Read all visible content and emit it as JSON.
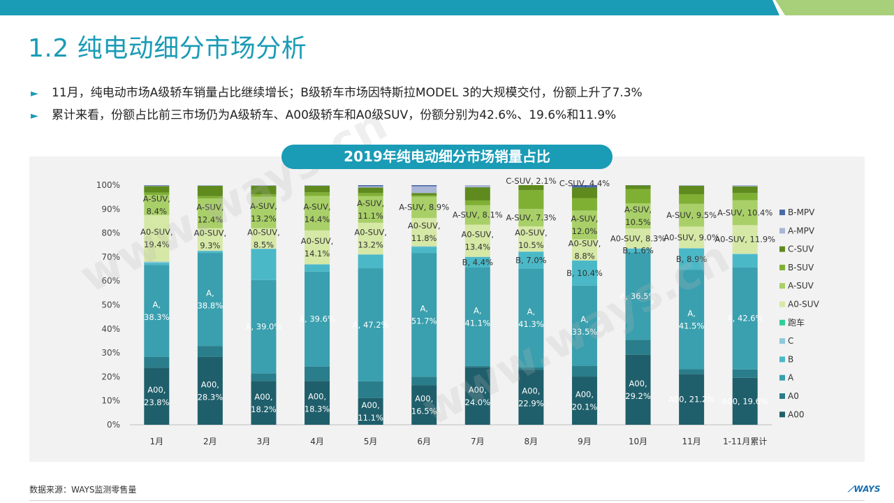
{
  "page": {
    "title": "1.2 纯电动细分市场分析",
    "bullets": [
      "11月，纯电动市场A级轿车销量占比继续增长；B级轿车市场因特斯拉MODEL 3的大规模交付，份额上升了7.3%",
      "累计来看，份额占比前三市场仍为A级轿车、A00级轿车和A0级SUV，份额分别为42.6%、19.6%和11.9%"
    ],
    "bullet_marker": "►",
    "source": "数据来源：WAYS监测零售量",
    "logo": "WAYS",
    "watermark": "www.ways.cn",
    "colors": {
      "accent": "#1a9bb6",
      "topbar_green": "#a8cf7a"
    }
  },
  "chart_data": {
    "type": "bar",
    "stacked": true,
    "title": "2019年纯电动细分市场销量占比",
    "categories": [
      "1月",
      "2月",
      "3月",
      "4月",
      "5月",
      "6月",
      "7月",
      "8月",
      "9月",
      "10月",
      "11月",
      "1-11月累计"
    ],
    "ylim": [
      0,
      100
    ],
    "y_ticks": [
      "0%",
      "10%",
      "20%",
      "30%",
      "40%",
      "50%",
      "60%",
      "70%",
      "80%",
      "90%",
      "100%"
    ],
    "legend_position": "right",
    "series": [
      {
        "name": "A00",
        "color": "#1f5f6b",
        "values": [
          23.8,
          28.3,
          18.2,
          18.3,
          11.1,
          16.5,
          24.0,
          22.9,
          20.1,
          29.2,
          21.2,
          19.6
        ]
      },
      {
        "name": "A0",
        "color": "#2a7d8a",
        "values": [
          4.5,
          4.6,
          3.2,
          6.0,
          7.0,
          3.5,
          0.5,
          1.0,
          4.5,
          6.2,
          2.0,
          3.5
        ]
      },
      {
        "name": "A",
        "color": "#3a9fae",
        "values": [
          38.3,
          38.8,
          39.0,
          39.6,
          47.2,
          51.7,
          41.1,
          41.3,
          33.5,
          36.5,
          41.5,
          42.6
        ]
      },
      {
        "name": "B",
        "color": "#4bb8c7",
        "values": [
          1.0,
          0.8,
          13.0,
          3.0,
          5.7,
          2.5,
          4.4,
          7.0,
          10.4,
          1.6,
          8.9,
          5.5
        ]
      },
      {
        "name": "C",
        "color": "#8fc9dc",
        "values": [
          0.5,
          0.2,
          0.1,
          0.1,
          0.1,
          0.3,
          0.1,
          0.1,
          0.1,
          0.1,
          0.1,
          0.2
        ]
      },
      {
        "name": "跑车",
        "color": "#2ecf98",
        "values": [
          0,
          0,
          0,
          0,
          0,
          0,
          0,
          0,
          0,
          0,
          0,
          0
        ]
      },
      {
        "name": "A0-SUV",
        "color": "#d6e8a6",
        "values": [
          19.4,
          9.3,
          8.5,
          14.1,
          13.2,
          11.8,
          13.4,
          10.5,
          8.8,
          8.3,
          9.0,
          11.9
        ]
      },
      {
        "name": "A-SUV",
        "color": "#a9d068",
        "values": [
          8.4,
          12.4,
          13.2,
          14.4,
          11.1,
          8.9,
          8.1,
          7.3,
          12.0,
          10.5,
          9.5,
          10.4
        ]
      },
      {
        "name": "B-SUV",
        "color": "#7fb034",
        "values": [
          1.0,
          1.0,
          1.0,
          1.5,
          1.3,
          0.5,
          2.0,
          7.8,
          5.2,
          6.0,
          4.0,
          3.0
        ]
      },
      {
        "name": "C-SUV",
        "color": "#5e8a1e",
        "values": [
          2.7,
          4.3,
          3.5,
          2.7,
          2.3,
          1.0,
          5.5,
          2.1,
          4.4,
          1.5,
          3.5,
          2.8
        ]
      },
      {
        "name": "A-MPV",
        "color": "#aab6d6",
        "values": [
          0.2,
          0.3,
          0.3,
          0.3,
          0.5,
          2.8,
          0.9,
          0,
          0,
          0,
          0.3,
          0.5
        ]
      },
      {
        "name": "B-MPV",
        "color": "#4a6aa8",
        "values": [
          0.2,
          0,
          0,
          0,
          0.5,
          0.5,
          0,
          0,
          1.0,
          0.1,
          0,
          0
        ]
      }
    ],
    "data_labels": [
      {
        "cat": 0,
        "series": "A00",
        "lines": [
          "A00,",
          "23.8%"
        ]
      },
      {
        "cat": 0,
        "series": "A",
        "lines": [
          "A,",
          "38.3%"
        ]
      },
      {
        "cat": 0,
        "series": "A0-SUV",
        "lines": [
          "A0-SUV,",
          "19.4%"
        ]
      },
      {
        "cat": 0,
        "series": "A-SUV",
        "lines": [
          "A-SUV,",
          "8.4%"
        ]
      },
      {
        "cat": 1,
        "series": "A00",
        "lines": [
          "A00,",
          "28.3%"
        ]
      },
      {
        "cat": 1,
        "series": "A",
        "lines": [
          "A,",
          "38.8%"
        ]
      },
      {
        "cat": 1,
        "series": "A0-SUV",
        "lines": [
          "A0-SUV,",
          "9.3%"
        ]
      },
      {
        "cat": 1,
        "series": "A-SUV",
        "lines": [
          "A-SUV,",
          "12.4%"
        ]
      },
      {
        "cat": 2,
        "series": "A00",
        "lines": [
          "A00,",
          "18.2%"
        ]
      },
      {
        "cat": 2,
        "series": "A",
        "lines": [
          "A, 39.0%"
        ]
      },
      {
        "cat": 2,
        "series": "A0-SUV",
        "lines": [
          "A0-SUV,",
          "8.5%"
        ]
      },
      {
        "cat": 2,
        "series": "A-SUV",
        "lines": [
          "A-SUV,",
          "13.2%"
        ]
      },
      {
        "cat": 3,
        "series": "A00",
        "lines": [
          "A00,",
          "18.3%"
        ]
      },
      {
        "cat": 3,
        "series": "A",
        "lines": [
          "A, 39.6%"
        ]
      },
      {
        "cat": 3,
        "series": "A0-SUV",
        "lines": [
          "A0-SUV,",
          "14.1%"
        ]
      },
      {
        "cat": 3,
        "series": "A-SUV",
        "lines": [
          "A-SUV,",
          "14.4%"
        ]
      },
      {
        "cat": 4,
        "series": "A00",
        "lines": [
          "A00,",
          "11.1%"
        ]
      },
      {
        "cat": 4,
        "series": "A",
        "lines": [
          "A, 47.2%"
        ]
      },
      {
        "cat": 4,
        "series": "A0-SUV",
        "lines": [
          "A0-SUV,",
          "13.2%"
        ]
      },
      {
        "cat": 4,
        "series": "A-SUV",
        "lines": [
          "A-SUV,",
          "11.1%"
        ]
      },
      {
        "cat": 5,
        "series": "A00",
        "lines": [
          "A00,",
          "16.5%"
        ]
      },
      {
        "cat": 5,
        "series": "A",
        "lines": [
          "A,",
          "51.7%"
        ]
      },
      {
        "cat": 5,
        "series": "A0-SUV",
        "lines": [
          "A0-SUV,",
          "11.8%"
        ]
      },
      {
        "cat": 5,
        "series": "A-SUV",
        "lines": [
          "A-SUV, 8.9%"
        ]
      },
      {
        "cat": 6,
        "series": "A00",
        "lines": [
          "A00,",
          "24.0%"
        ]
      },
      {
        "cat": 6,
        "series": "A",
        "lines": [
          "A,",
          "41.1%"
        ]
      },
      {
        "cat": 6,
        "series": "B",
        "lines": [
          "B, 4.4%"
        ]
      },
      {
        "cat": 6,
        "series": "A0-SUV",
        "lines": [
          "A0-SUV,",
          "13.4%"
        ]
      },
      {
        "cat": 6,
        "series": "A-SUV",
        "lines": [
          "A-SUV, 8.1%"
        ]
      },
      {
        "cat": 7,
        "series": "A00",
        "lines": [
          "A00,",
          "22.9%"
        ]
      },
      {
        "cat": 7,
        "series": "A",
        "lines": [
          "A,",
          "41.3%"
        ]
      },
      {
        "cat": 7,
        "series": "B",
        "lines": [
          "B, 7.0%"
        ]
      },
      {
        "cat": 7,
        "series": "A0-SUV",
        "lines": [
          "A0-SUV,",
          "10.5%"
        ]
      },
      {
        "cat": 7,
        "series": "A-SUV",
        "lines": [
          "A-SUV, 7.3%"
        ]
      },
      {
        "cat": 7,
        "series": "C-SUV",
        "lines": [
          "C-SUV, 2.1%"
        ],
        "above": true
      },
      {
        "cat": 8,
        "series": "A00",
        "lines": [
          "A00,",
          "20.1%"
        ]
      },
      {
        "cat": 8,
        "series": "A",
        "lines": [
          "A,",
          "33.5%"
        ]
      },
      {
        "cat": 8,
        "series": "B",
        "lines": [
          "B, 10.4%"
        ]
      },
      {
        "cat": 8,
        "series": "A0-SUV",
        "lines": [
          "A0-SUV,",
          "8.8%"
        ]
      },
      {
        "cat": 8,
        "series": "A-SUV",
        "lines": [
          "A-SUV,",
          "12.0%"
        ]
      },
      {
        "cat": 8,
        "series": "C-SUV",
        "lines": [
          "C-SUV, 4.4%"
        ],
        "above": true
      },
      {
        "cat": 9,
        "series": "A00",
        "lines": [
          "A00,",
          "29.2%"
        ]
      },
      {
        "cat": 9,
        "series": "A",
        "lines": [
          "A, 36.5%"
        ]
      },
      {
        "cat": 9,
        "series": "B",
        "lines": [
          "B, 1.6%"
        ]
      },
      {
        "cat": 9,
        "series": "A0-SUV",
        "lines": [
          "A0-SUV, 8.3%"
        ]
      },
      {
        "cat": 9,
        "series": "A-SUV",
        "lines": [
          "A-SUV,",
          "10.5%"
        ]
      },
      {
        "cat": 10,
        "series": "A00",
        "lines": [
          "A00, 21.2%"
        ]
      },
      {
        "cat": 10,
        "series": "A",
        "lines": [
          "A,",
          "41.5%"
        ]
      },
      {
        "cat": 10,
        "series": "B",
        "lines": [
          "B, 8.9%"
        ]
      },
      {
        "cat": 10,
        "series": "A0-SUV",
        "lines": [
          "A0-SUV, 9.0%"
        ]
      },
      {
        "cat": 10,
        "series": "A-SUV",
        "lines": [
          "A-SUV, 9.5%"
        ]
      },
      {
        "cat": 11,
        "series": "A00",
        "lines": [
          "A00, 19.6%"
        ]
      },
      {
        "cat": 11,
        "series": "A",
        "lines": [
          "A, 42.6%"
        ]
      },
      {
        "cat": 11,
        "series": "A0-SUV",
        "lines": [
          "A0-SUV, 11.9%"
        ]
      },
      {
        "cat": 11,
        "series": "A-SUV",
        "lines": [
          "A-SUV, 10.4%"
        ]
      }
    ]
  }
}
